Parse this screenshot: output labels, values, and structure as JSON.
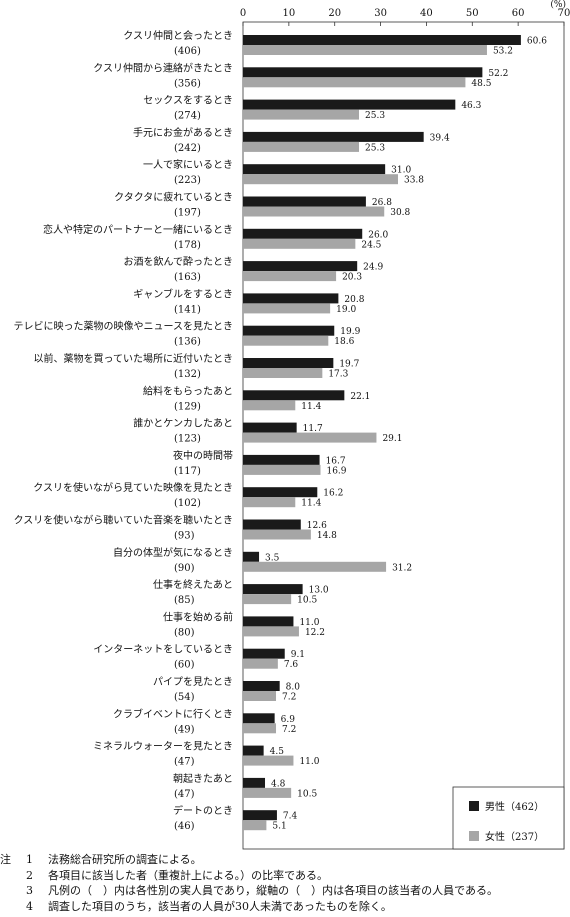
{
  "chart_data": {
    "type": "bar",
    "orientation": "horizontal",
    "unit": "(%)",
    "xlim": [
      0,
      70
    ],
    "x_ticks": [
      0,
      10,
      20,
      30,
      40,
      50,
      60,
      70
    ],
    "categories": [
      {
        "label": "クスリ仲間と会ったとき",
        "n": "(406)"
      },
      {
        "label": "クスリ仲間から連絡がきたとき",
        "n": "(356)"
      },
      {
        "label": "セックスをするとき",
        "n": "(274)"
      },
      {
        "label": "手元にお金があるとき",
        "n": "(242)"
      },
      {
        "label": "一人で家にいるとき",
        "n": "(223)"
      },
      {
        "label": "クタクタに疲れているとき",
        "n": "(197)"
      },
      {
        "label": "恋人や特定のパートナーと一緒にいるとき",
        "n": "(178)"
      },
      {
        "label": "お酒を飲んで酔ったとき",
        "n": "(163)"
      },
      {
        "label": "ギャンブルをするとき",
        "n": "(141)"
      },
      {
        "label": "テレビに映った薬物の映像やニュースを見たとき",
        "n": "(136)"
      },
      {
        "label": "以前、薬物を買っていた場所に近付いたとき",
        "n": "(132)"
      },
      {
        "label": "給料をもらったあと",
        "n": "(129)"
      },
      {
        "label": "誰かとケンカしたあと",
        "n": "(123)"
      },
      {
        "label": "夜中の時間帯",
        "n": "(117)"
      },
      {
        "label": "クスリを使いながら見ていた映像を見たとき",
        "n": "(102)"
      },
      {
        "label": "クスリを使いながら聴いていた音楽を聴いたとき",
        "n": "(93)"
      },
      {
        "label": "自分の体型が気になるとき",
        "n": "(90)"
      },
      {
        "label": "仕事を終えたあと",
        "n": "(85)"
      },
      {
        "label": "仕事を始める前",
        "n": "(80)"
      },
      {
        "label": "インターネットをしているとき",
        "n": "(60)"
      },
      {
        "label": "パイプを見たとき",
        "n": "(54)"
      },
      {
        "label": "クラブイベントに行くとき",
        "n": "(49)"
      },
      {
        "label": "ミネラルウォーターを見たとき",
        "n": "(47)"
      },
      {
        "label": "朝起きたあと",
        "n": "(47)"
      },
      {
        "label": "デートのとき",
        "n": "(46)"
      }
    ],
    "series": [
      {
        "name": "男性",
        "n": "(462)",
        "color": "#1a1a1a",
        "values": [
          60.6,
          52.2,
          46.3,
          39.4,
          31.0,
          26.8,
          26.0,
          24.9,
          20.8,
          19.9,
          19.7,
          22.1,
          11.7,
          16.7,
          16.2,
          12.6,
          3.5,
          13.0,
          11.0,
          9.1,
          8.0,
          6.9,
          4.5,
          4.8,
          7.4
        ]
      },
      {
        "name": "女性",
        "n": "(237)",
        "color": "#a6a6a6",
        "values": [
          53.2,
          48.5,
          25.3,
          25.3,
          33.8,
          30.8,
          24.5,
          20.3,
          19.0,
          18.6,
          17.3,
          11.4,
          29.1,
          16.9,
          11.4,
          14.8,
          31.2,
          10.5,
          12.2,
          7.6,
          7.2,
          7.2,
          11.0,
          10.5,
          5.1
        ]
      }
    ],
    "legend_position": "bottom-right"
  },
  "notes": {
    "head": "注",
    "items": [
      {
        "num": "1",
        "text": "法務総合研究所の調査による。"
      },
      {
        "num": "2",
        "text": "各項目に該当した者（重複計上による。）の比率である。"
      },
      {
        "num": "3",
        "text": "凡例の（　）内は各性別の実人員であり，縦軸の（　）内は各項目の該当者の人員である。"
      },
      {
        "num": "4",
        "text": "調査した項目のうち，該当者の人員が30人未満であったものを除く。"
      }
    ]
  }
}
